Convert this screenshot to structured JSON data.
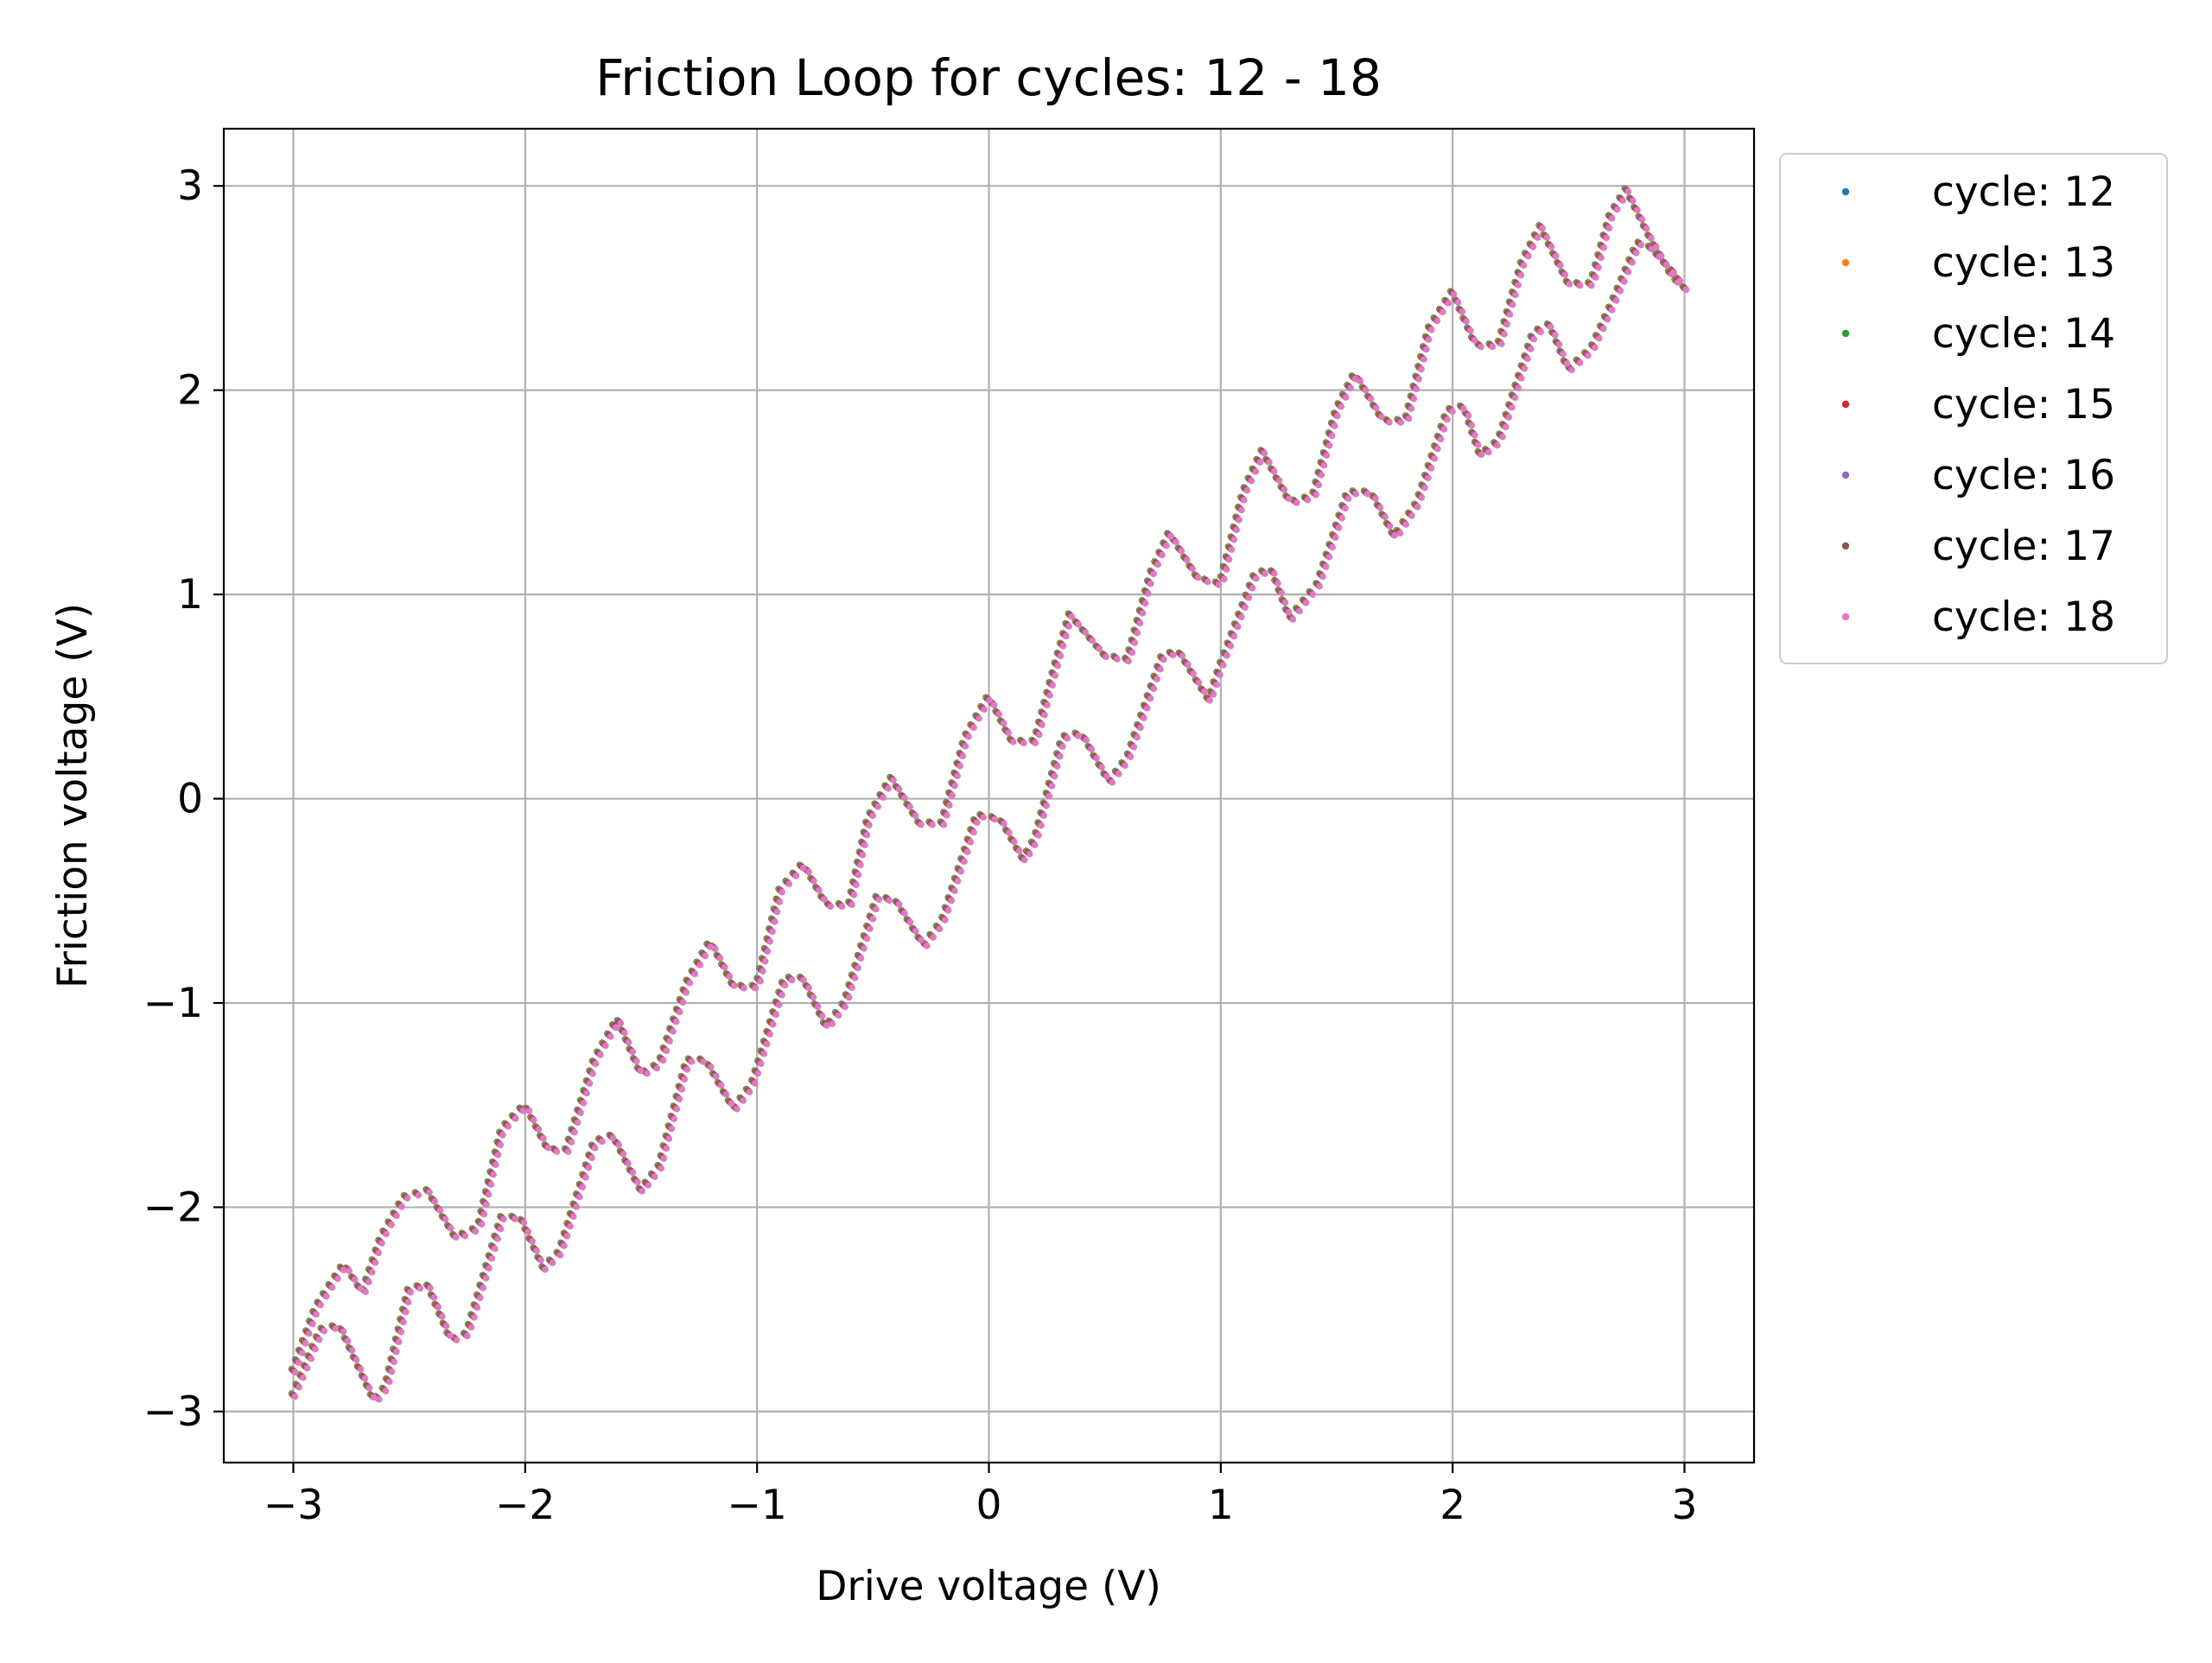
{
  "chart_data": {
    "type": "scatter",
    "title": "Friction Loop for cycles: 12 - 18",
    "xlabel": "Drive voltage (V)",
    "ylabel": "Friction voltage (V)",
    "xlim": [
      -3.3,
      3.3
    ],
    "ylim": [
      -3.25,
      3.28
    ],
    "xticks": [
      -3,
      -2,
      -1,
      0,
      1,
      2,
      3
    ],
    "yticks": [
      -3,
      -2,
      -1,
      0,
      1,
      2,
      3
    ],
    "xtick_labels": [
      "−3",
      "−2",
      "−1",
      "0",
      "1",
      "2",
      "3"
    ],
    "ytick_labels": [
      "−3",
      "−2",
      "−1",
      "0",
      "1",
      "2",
      "3"
    ],
    "grid": true,
    "legend_position": "outside upper right",
    "loop": {
      "forward_branch": [
        [
          -3.0,
          -2.8
        ],
        [
          -2.9,
          -2.49
        ],
        [
          -2.78,
          -2.28
        ],
        [
          -2.7,
          -2.42
        ],
        [
          -2.62,
          -2.15
        ],
        [
          -2.52,
          -1.95
        ],
        [
          -2.42,
          -1.92
        ],
        [
          -2.3,
          -2.15
        ],
        [
          -2.2,
          -2.1
        ],
        [
          -2.1,
          -1.62
        ],
        [
          -2.0,
          -1.5
        ],
        [
          -1.9,
          -1.72
        ],
        [
          -1.82,
          -1.72
        ],
        [
          -1.7,
          -1.28
        ],
        [
          -1.6,
          -1.08
        ],
        [
          -1.5,
          -1.35
        ],
        [
          -1.42,
          -1.3
        ],
        [
          -1.3,
          -0.9
        ],
        [
          -1.2,
          -0.7
        ],
        [
          -1.1,
          -0.92
        ],
        [
          -1.0,
          -0.92
        ],
        [
          -0.9,
          -0.45
        ],
        [
          -0.8,
          -0.32
        ],
        [
          -0.7,
          -0.52
        ],
        [
          -0.6,
          -0.52
        ],
        [
          -0.52,
          -0.1
        ],
        [
          -0.42,
          0.1
        ],
        [
          -0.3,
          -0.12
        ],
        [
          -0.2,
          -0.12
        ],
        [
          -0.1,
          0.3
        ],
        [
          0.0,
          0.5
        ],
        [
          0.1,
          0.28
        ],
        [
          0.2,
          0.28
        ],
        [
          0.3,
          0.7
        ],
        [
          0.35,
          0.9
        ],
        [
          0.5,
          0.7
        ],
        [
          0.6,
          0.68
        ],
        [
          0.7,
          1.1
        ],
        [
          0.78,
          1.3
        ],
        [
          0.9,
          1.08
        ],
        [
          1.0,
          1.05
        ],
        [
          1.1,
          1.5
        ],
        [
          1.18,
          1.7
        ],
        [
          1.3,
          1.45
        ],
        [
          1.4,
          1.48
        ],
        [
          1.5,
          1.9
        ],
        [
          1.58,
          2.08
        ],
        [
          1.7,
          1.85
        ],
        [
          1.8,
          1.85
        ],
        [
          1.9,
          2.3
        ],
        [
          2.0,
          2.48
        ],
        [
          2.1,
          2.22
        ],
        [
          2.2,
          2.22
        ],
        [
          2.3,
          2.62
        ],
        [
          2.38,
          2.8
        ],
        [
          2.5,
          2.52
        ],
        [
          2.6,
          2.52
        ],
        [
          2.68,
          2.85
        ],
        [
          2.75,
          2.98
        ],
        [
          2.85,
          2.75
        ],
        [
          2.95,
          2.55
        ],
        [
          3.0,
          2.5
        ]
      ],
      "return_branch": [
        [
          3.0,
          2.5
        ],
        [
          2.95,
          2.58
        ],
        [
          2.85,
          2.7
        ],
        [
          2.8,
          2.72
        ],
        [
          2.7,
          2.45
        ],
        [
          2.6,
          2.2
        ],
        [
          2.5,
          2.1
        ],
        [
          2.42,
          2.32
        ],
        [
          2.35,
          2.28
        ],
        [
          2.2,
          1.75
        ],
        [
          2.12,
          1.68
        ],
        [
          2.05,
          1.92
        ],
        [
          1.98,
          1.9
        ],
        [
          1.85,
          1.45
        ],
        [
          1.75,
          1.28
        ],
        [
          1.65,
          1.5
        ],
        [
          1.55,
          1.5
        ],
        [
          1.42,
          1.05
        ],
        [
          1.3,
          0.88
        ],
        [
          1.22,
          1.12
        ],
        [
          1.15,
          1.1
        ],
        [
          1.0,
          0.65
        ],
        [
          0.95,
          0.48
        ],
        [
          0.82,
          0.72
        ],
        [
          0.75,
          0.7
        ],
        [
          0.6,
          0.2
        ],
        [
          0.52,
          0.08
        ],
        [
          0.4,
          0.32
        ],
        [
          0.32,
          0.3
        ],
        [
          0.2,
          -0.2
        ],
        [
          0.15,
          -0.3
        ],
        [
          0.05,
          -0.1
        ],
        [
          -0.05,
          -0.08
        ],
        [
          -0.2,
          -0.6
        ],
        [
          -0.28,
          -0.72
        ],
        [
          -0.4,
          -0.5
        ],
        [
          -0.48,
          -0.48
        ],
        [
          -0.62,
          -1.0
        ],
        [
          -0.7,
          -1.12
        ],
        [
          -0.8,
          -0.88
        ],
        [
          -0.88,
          -0.88
        ],
        [
          -1.02,
          -1.4
        ],
        [
          -1.1,
          -1.52
        ],
        [
          -1.22,
          -1.28
        ],
        [
          -1.3,
          -1.28
        ],
        [
          -1.42,
          -1.8
        ],
        [
          -1.5,
          -1.92
        ],
        [
          -1.62,
          -1.65
        ],
        [
          -1.7,
          -1.68
        ],
        [
          -1.85,
          -2.22
        ],
        [
          -1.92,
          -2.3
        ],
        [
          -2.02,
          -2.05
        ],
        [
          -2.1,
          -2.05
        ],
        [
          -2.25,
          -2.62
        ],
        [
          -2.32,
          -2.65
        ],
        [
          -2.42,
          -2.38
        ],
        [
          -2.5,
          -2.4
        ],
        [
          -2.6,
          -2.88
        ],
        [
          -2.65,
          -2.95
        ],
        [
          -2.8,
          -2.58
        ],
        [
          -2.88,
          -2.6
        ],
        [
          -3.0,
          -2.92
        ]
      ],
      "points_per_branch": 300
    },
    "series": [
      {
        "name": "cycle: 12",
        "color": "#1f77b4"
      },
      {
        "name": "cycle: 13",
        "color": "#ff7f0e"
      },
      {
        "name": "cycle: 14",
        "color": "#2ca02c"
      },
      {
        "name": "cycle: 15",
        "color": "#d62728"
      },
      {
        "name": "cycle: 16",
        "color": "#9467bd"
      },
      {
        "name": "cycle: 17",
        "color": "#8c564b"
      },
      {
        "name": "cycle: 18",
        "color": "#e377c2"
      }
    ]
  }
}
